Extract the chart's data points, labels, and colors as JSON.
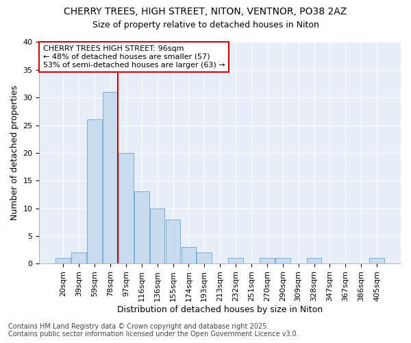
{
  "title_line1": "CHERRY TREES, HIGH STREET, NITON, VENTNOR, PO38 2AZ",
  "title_line2": "Size of property relative to detached houses in Niton",
  "xlabel": "Distribution of detached houses by size in Niton",
  "ylabel": "Number of detached properties",
  "bar_color": "#c8dcf0",
  "bar_edge_color": "#7aaed0",
  "categories": [
    "20sqm",
    "39sqm",
    "59sqm",
    "78sqm",
    "97sqm",
    "116sqm",
    "136sqm",
    "155sqm",
    "174sqm",
    "193sqm",
    "213sqm",
    "232sqm",
    "251sqm",
    "270sqm",
    "290sqm",
    "309sqm",
    "328sqm",
    "347sqm",
    "367sqm",
    "386sqm",
    "405sqm"
  ],
  "values": [
    1,
    2,
    26,
    31,
    20,
    13,
    10,
    8,
    3,
    2,
    0,
    1,
    0,
    1,
    1,
    0,
    1,
    0,
    0,
    0,
    1
  ],
  "vline_x_index": 4,
  "vline_color": "#cc0000",
  "ylim": [
    0,
    40
  ],
  "yticks": [
    0,
    5,
    10,
    15,
    20,
    25,
    30,
    35,
    40
  ],
  "annotation_title": "CHERRY TREES HIGH STREET: 96sqm",
  "annotation_line2": "← 48% of detached houses are smaller (57)",
  "annotation_line3": "53% of semi-detached houses are larger (63) →",
  "bg_color": "#ffffff",
  "plot_bg_color": "#e8eef8",
  "grid_color": "#ffffff",
  "footer_line1": "Contains HM Land Registry data © Crown copyright and database right 2025.",
  "footer_line2": "Contains public sector information licensed under the Open Government Licence v3.0.",
  "title_fontsize": 10,
  "subtitle_fontsize": 9,
  "tick_fontsize": 8,
  "axis_label_fontsize": 9,
  "annotation_fontsize": 8,
  "footer_fontsize": 7
}
